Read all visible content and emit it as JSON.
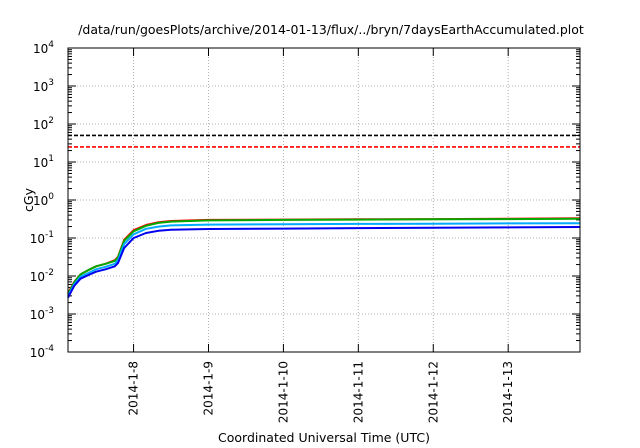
{
  "chart_data": {
    "type": "line",
    "title": "/data/run/goesPlots/archive/2014-01-13/flux/../bryn/7daysEarthAccumulated.plot",
    "xlabel": "Coordinated Universal Time (UTC)",
    "ylabel": "cGy",
    "y_scale": "log",
    "ylim": [
      0.0001,
      10000
    ],
    "xlim": [
      "2014-01-07 03:00",
      "2014-01-13 23:00"
    ],
    "x_ticks": [
      "2014-1-8",
      "2014-1-9",
      "2014-1-10",
      "2014-1-11",
      "2014-1-12",
      "2014-1-13"
    ],
    "y_ticks": [
      {
        "base": "10",
        "exp": "-4",
        "value": 0.0001
      },
      {
        "base": "10",
        "exp": "-3",
        "value": 0.001
      },
      {
        "base": "10",
        "exp": "-2",
        "value": 0.01
      },
      {
        "base": "10",
        "exp": "-1",
        "value": 0.1
      },
      {
        "base": "10",
        "exp": "0",
        "value": 1
      },
      {
        "base": "10",
        "exp": "1",
        "value": 10
      },
      {
        "base": "10",
        "exp": "2",
        "value": 100
      },
      {
        "base": "10",
        "exp": "3",
        "value": 1000
      },
      {
        "base": "10",
        "exp": "4",
        "value": 10000
      }
    ],
    "grid": true,
    "series": [
      {
        "color": "#000000",
        "dash": true,
        "x": [
          "2014-01-07 03:00",
          "2014-01-13 23:00"
        ],
        "y": [
          50,
          50
        ]
      },
      {
        "color": "#ff0000",
        "dash": true,
        "x": [
          "2014-01-07 03:00",
          "2014-01-13 23:00"
        ],
        "y": [
          25,
          25
        ]
      },
      {
        "color": "#ff0000",
        "dash": false,
        "x": [
          "2014-01-07 03:00",
          "2014-01-07 05:00",
          "2014-01-07 07:00",
          "2014-01-07 10:00",
          "2014-01-07 12:00",
          "2014-01-07 15:00",
          "2014-01-07 18:00",
          "2014-01-07 19:00",
          "2014-01-07 21:00",
          "2014-01-08 00:00",
          "2014-01-08 04:00",
          "2014-01-08 08:00",
          "2014-01-08 12:00",
          "2014-01-09 00:00",
          "2014-01-10 00:00",
          "2014-01-11 00:00",
          "2014-01-12 00:00",
          "2014-01-13 00:00",
          "2014-01-13 23:00"
        ],
        "y": [
          0.0035,
          0.007,
          0.011,
          0.015,
          0.018,
          0.021,
          0.026,
          0.032,
          0.09,
          0.16,
          0.22,
          0.26,
          0.28,
          0.3,
          0.305,
          0.31,
          0.315,
          0.32,
          0.33
        ]
      },
      {
        "color": "#00aa00",
        "dash": false,
        "x": [
          "2014-01-07 03:00",
          "2014-01-07 05:00",
          "2014-01-07 07:00",
          "2014-01-07 10:00",
          "2014-01-07 12:00",
          "2014-01-07 15:00",
          "2014-01-07 18:00",
          "2014-01-07 19:00",
          "2014-01-07 21:00",
          "2014-01-08 00:00",
          "2014-01-08 04:00",
          "2014-01-08 08:00",
          "2014-01-08 12:00",
          "2014-01-09 00:00",
          "2014-01-10 00:00",
          "2014-01-11 00:00",
          "2014-01-12 00:00",
          "2014-01-13 00:00",
          "2014-01-13 23:00"
        ],
        "y": [
          0.0033,
          0.0068,
          0.011,
          0.015,
          0.018,
          0.021,
          0.025,
          0.031,
          0.085,
          0.15,
          0.21,
          0.25,
          0.27,
          0.29,
          0.3,
          0.305,
          0.31,
          0.315,
          0.32
        ]
      },
      {
        "color": "#00aaff",
        "dash": false,
        "x": [
          "2014-01-07 03:00",
          "2014-01-07 05:00",
          "2014-01-07 07:00",
          "2014-01-07 10:00",
          "2014-01-07 12:00",
          "2014-01-07 15:00",
          "2014-01-07 18:00",
          "2014-01-07 19:00",
          "2014-01-07 21:00",
          "2014-01-08 00:00",
          "2014-01-08 04:00",
          "2014-01-08 08:00",
          "2014-01-08 12:00",
          "2014-01-09 00:00",
          "2014-01-10 00:00",
          "2014-01-11 00:00",
          "2014-01-12 00:00",
          "2014-01-13 00:00",
          "2014-01-13 23:00"
        ],
        "y": [
          0.003,
          0.006,
          0.0095,
          0.0125,
          0.015,
          0.0175,
          0.021,
          0.026,
          0.07,
          0.125,
          0.175,
          0.2,
          0.215,
          0.225,
          0.23,
          0.235,
          0.238,
          0.242,
          0.245
        ]
      },
      {
        "color": "#0000ee",
        "dash": false,
        "x": [
          "2014-01-07 03:00",
          "2014-01-07 05:00",
          "2014-01-07 07:00",
          "2014-01-07 10:00",
          "2014-01-07 12:00",
          "2014-01-07 15:00",
          "2014-01-07 18:00",
          "2014-01-07 19:00",
          "2014-01-07 21:00",
          "2014-01-08 00:00",
          "2014-01-08 04:00",
          "2014-01-08 08:00",
          "2014-01-08 12:00",
          "2014-01-09 00:00",
          "2014-01-10 00:00",
          "2014-01-11 00:00",
          "2014-01-12 00:00",
          "2014-01-13 00:00",
          "2014-01-13 23:00"
        ],
        "y": [
          0.0027,
          0.0055,
          0.0085,
          0.011,
          0.013,
          0.015,
          0.018,
          0.022,
          0.055,
          0.1,
          0.135,
          0.155,
          0.165,
          0.172,
          0.177,
          0.182,
          0.186,
          0.19,
          0.195
        ]
      }
    ]
  }
}
